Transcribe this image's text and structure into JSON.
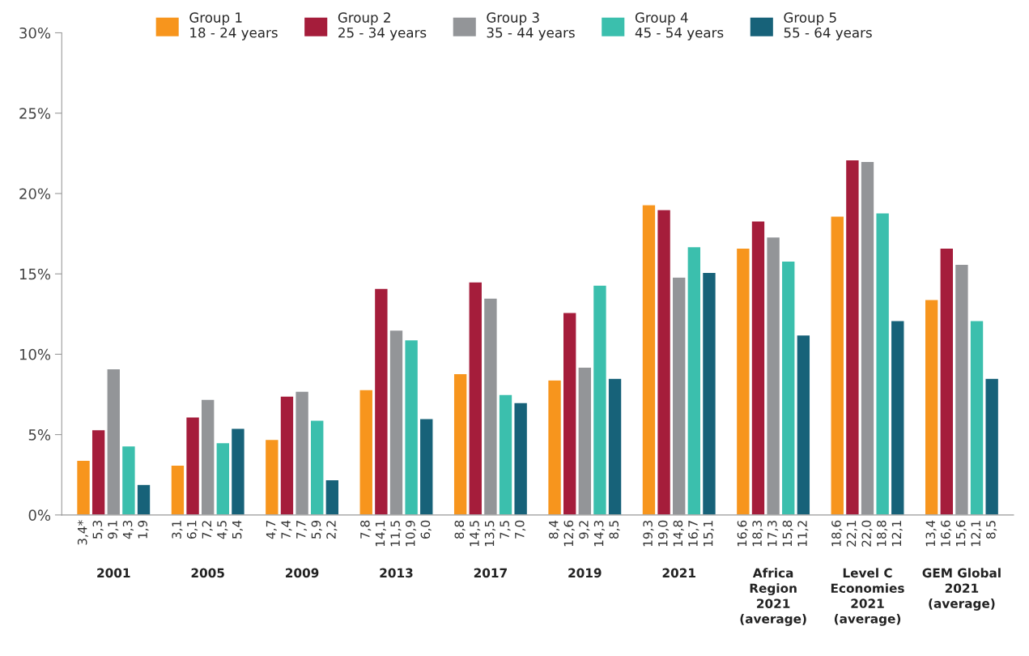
{
  "chart_data": {
    "type": "bar",
    "categories": [
      "2001",
      "2005",
      "2009",
      "2013",
      "2017",
      "2019",
      "2021",
      "Africa\nRegion\n2021\n(average)",
      "Level C\nEconomies\n2021\n(average)",
      "GEM Global\n2021\n(average)"
    ],
    "series": [
      {
        "name": "Group 1\n18 - 24 years",
        "color": "#f7951d",
        "values": [
          3.4,
          3.1,
          4.7,
          7.8,
          8.8,
          8.4,
          19.3,
          16.6,
          18.6,
          13.4
        ],
        "value_labels": [
          "3,4*",
          "3,1",
          "4,7",
          "7,8",
          "8,8",
          "8,4",
          "19,3",
          "16,6",
          "18,6",
          "13,4"
        ]
      },
      {
        "name": "Group 2\n25 - 34 years",
        "color": "#a51d3b",
        "values": [
          5.3,
          6.1,
          7.4,
          14.1,
          14.5,
          12.6,
          19.0,
          18.3,
          22.1,
          16.6
        ],
        "value_labels": [
          "5,3",
          "6,1",
          "7,4",
          "14,1",
          "14,5",
          "12,6",
          "19,0",
          "18,3",
          "22,1",
          "16,6"
        ]
      },
      {
        "name": "Group 3\n35 - 44 years",
        "color": "#939598",
        "values": [
          9.1,
          7.2,
          7.7,
          11.5,
          13.5,
          9.2,
          14.8,
          17.3,
          22.0,
          15.6
        ],
        "value_labels": [
          "9,1",
          "7,2",
          "7,7",
          "11,5",
          "13,5",
          "9,2",
          "14,8",
          "17,3",
          "22,0",
          "15,6"
        ]
      },
      {
        "name": "Group 4\n45 - 54 years",
        "color": "#3bbfad",
        "values": [
          4.3,
          4.5,
          5.9,
          10.9,
          7.5,
          14.3,
          16.7,
          15.8,
          18.8,
          12.1
        ],
        "value_labels": [
          "4,3",
          "4,5",
          "5,9",
          "10,9",
          "7,5",
          "14,3",
          "16,7",
          "15,8",
          "18,8",
          "12,1"
        ]
      },
      {
        "name": "Group 5\n55 - 64 years",
        "color": "#176279",
        "values": [
          1.9,
          5.4,
          2.2,
          6.0,
          7.0,
          8.5,
          15.1,
          11.2,
          12.1,
          8.5
        ],
        "value_labels": [
          "1,9",
          "5,4",
          "2,2",
          "6,0",
          "7,0",
          "8,5",
          "15,1",
          "11,2",
          "12,1",
          "8,5"
        ]
      }
    ],
    "ylim": [
      0,
      30
    ],
    "yticks": [
      {
        "value": 0,
        "label": "0%"
      },
      {
        "value": 5,
        "label": "5%"
      },
      {
        "value": 10,
        "label": "10%"
      },
      {
        "value": 15,
        "label": "15%"
      },
      {
        "value": 20,
        "label": "20%"
      },
      {
        "value": 25,
        "label": "25%"
      },
      {
        "value": 30,
        "label": "30%"
      }
    ],
    "grid": false,
    "legend": "top"
  }
}
